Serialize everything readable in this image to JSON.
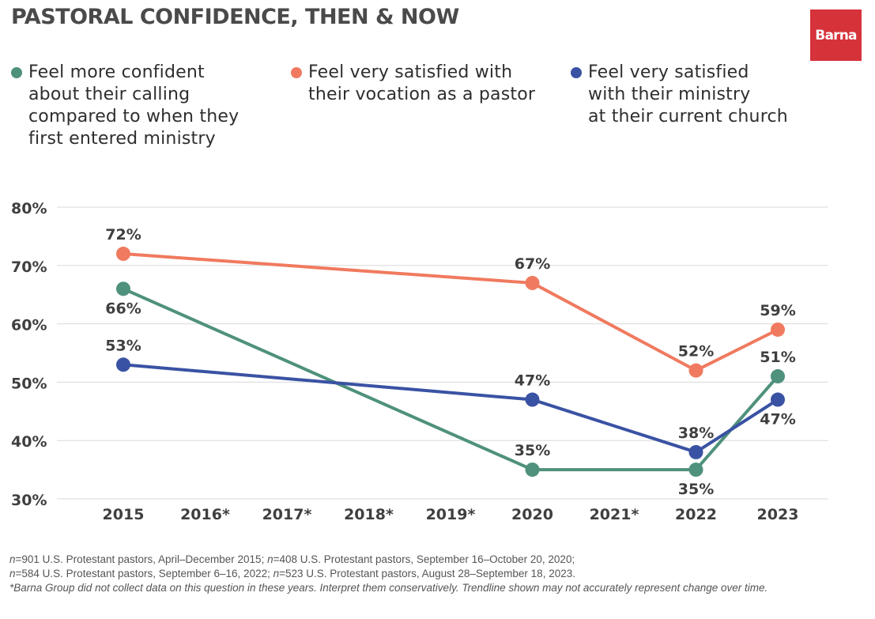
{
  "header": {
    "title": "PASTORAL CONFIDENCE, THEN & NOW",
    "logo_text": "Barna"
  },
  "colors": {
    "green": "#4e917c",
    "orange": "#f07a5f",
    "blue": "#3a52a3",
    "grid": "#d9d9d9",
    "logo": "#d6323a"
  },
  "legend": [
    {
      "label": "Feel more confident\nabout their calling\ncompared to when they\nfirst entered ministry",
      "color": "#4e917c"
    },
    {
      "label": "Feel very satisfied with\ntheir vocation as a pastor",
      "color": "#f07a5f"
    },
    {
      "label": "Feel very satisfied\nwith their ministry\nat their current church",
      "color": "#3a52a3"
    }
  ],
  "chart_data": {
    "type": "line",
    "categories": [
      "2015",
      "2016*",
      "2017*",
      "2018*",
      "2019*",
      "2020",
      "2021*",
      "2022",
      "2023"
    ],
    "y_ticks": [
      "30%",
      "40%",
      "50%",
      "60%",
      "70%",
      "80%"
    ],
    "ylim": [
      30,
      80
    ],
    "grid": true,
    "legend_position": "top",
    "series": [
      {
        "name": "Feel more confident about their calling compared to when they first entered ministry",
        "color": "#4e917c",
        "points": [
          {
            "x": "2015",
            "y": 66,
            "label": "66%",
            "label_pos": "below"
          },
          {
            "x": "2020",
            "y": 35,
            "label": "35%",
            "label_pos": "above"
          },
          {
            "x": "2022",
            "y": 35,
            "label": "35%",
            "label_pos": "below"
          },
          {
            "x": "2023",
            "y": 51,
            "label": "51%",
            "label_pos": "above"
          }
        ]
      },
      {
        "name": "Feel very satisfied with their vocation as a pastor",
        "color": "#f07a5f",
        "points": [
          {
            "x": "2015",
            "y": 72,
            "label": "72%",
            "label_pos": "above"
          },
          {
            "x": "2020",
            "y": 67,
            "label": "67%",
            "label_pos": "above"
          },
          {
            "x": "2022",
            "y": 52,
            "label": "52%",
            "label_pos": "above"
          },
          {
            "x": "2023",
            "y": 59,
            "label": "59%",
            "label_pos": "above"
          }
        ]
      },
      {
        "name": "Feel very satisfied with their ministry at their current church",
        "color": "#3a52a3",
        "points": [
          {
            "x": "2015",
            "y": 53,
            "label": "53%",
            "label_pos": "above"
          },
          {
            "x": "2020",
            "y": 47,
            "label": "47%",
            "label_pos": "above"
          },
          {
            "x": "2022",
            "y": 38,
            "label": "38%",
            "label_pos": "above"
          },
          {
            "x": "2023",
            "y": 47,
            "label": "47%",
            "label_pos": "below"
          }
        ]
      }
    ]
  },
  "footnote": {
    "line1_italic": "n",
    "line1": "=901 U.S. Protestant pastors, April–December 2015; ",
    "line1b_italic": "n",
    "line1b": "=408 U.S. Protestant pastors, September 16–October 20, 2020;",
    "line2_italic": "n",
    "line2": "=584 U.S. Protestant pastors, September 6–16, 2022; ",
    "line2b_italic": "n",
    "line2b": "=523 U.S. Protestant pastors, August 28–September 18, 2023.",
    "note": "*Barna Group did not collect data on this question in these years. Interpret them conservatively. Trendline shown may not accurately represent change over time."
  }
}
